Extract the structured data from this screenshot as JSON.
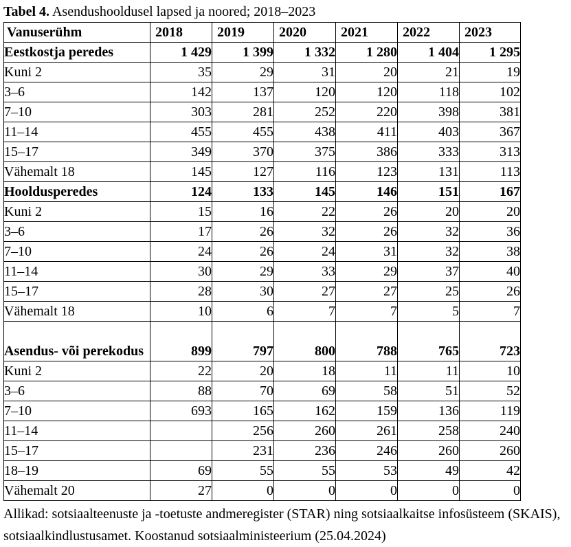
{
  "title": {
    "label_bold": "Tabel 4.",
    "label_rest": "Asendushooldusel lapsed ja noored; 2018–2023"
  },
  "colors": {
    "text": "#000000",
    "background": "#ffffff",
    "border": "#000000"
  },
  "table": {
    "header": [
      "Vanuserühm",
      "2018",
      "2019",
      "2020",
      "2021",
      "2022",
      "2023"
    ],
    "rows": [
      {
        "label": "Eestkostja peredes",
        "bold": true,
        "values": [
          "1 429",
          "1 399",
          "1 332",
          "1 280",
          "1 404",
          "1 295"
        ]
      },
      {
        "label": "Kuni 2",
        "bold": false,
        "values": [
          "35",
          "29",
          "31",
          "20",
          "21",
          "19"
        ]
      },
      {
        "label": "3–6",
        "bold": false,
        "values": [
          "142",
          "137",
          "120",
          "120",
          "118",
          "102"
        ]
      },
      {
        "label": "7–10",
        "bold": false,
        "values": [
          "303",
          "281",
          "252",
          "220",
          "398",
          "381"
        ]
      },
      {
        "label": "11–14",
        "bold": false,
        "values": [
          "455",
          "455",
          "438",
          "411",
          "403",
          "367"
        ]
      },
      {
        "label": "15–17",
        "bold": false,
        "values": [
          "349",
          "370",
          "375",
          "386",
          "333",
          "313"
        ]
      },
      {
        "label": "Vähemalt 18",
        "bold": false,
        "values": [
          "145",
          "127",
          "116",
          "123",
          "131",
          "113"
        ]
      },
      {
        "label": "Hooldusperedes",
        "bold": true,
        "values": [
          "124",
          "133",
          "145",
          "146",
          "151",
          "167"
        ]
      },
      {
        "label": "Kuni 2",
        "bold": false,
        "values": [
          "15",
          "16",
          "22",
          "26",
          "20",
          "20"
        ]
      },
      {
        "label": "3–6",
        "bold": false,
        "values": [
          "17",
          "26",
          "32",
          "26",
          "32",
          "36"
        ]
      },
      {
        "label": "7–10",
        "bold": false,
        "values": [
          "24",
          "26",
          "24",
          "31",
          "32",
          "38"
        ]
      },
      {
        "label": "11–14",
        "bold": false,
        "values": [
          "30",
          "29",
          "33",
          "29",
          "37",
          "40"
        ]
      },
      {
        "label": "15–17",
        "bold": false,
        "values": [
          "28",
          "30",
          "27",
          "27",
          "25",
          "26"
        ]
      },
      {
        "label": "Vähemalt 18",
        "bold": false,
        "values": [
          "10",
          "6",
          "7",
          "7",
          "5",
          "7"
        ]
      },
      {
        "label": "Asendus- või perekodus",
        "bold": true,
        "tall": true,
        "values": [
          "899",
          "797",
          "800",
          "788",
          "765",
          "723"
        ]
      },
      {
        "label": "Kuni 2",
        "bold": false,
        "values": [
          "22",
          "20",
          "18",
          "11",
          "11",
          "10"
        ]
      },
      {
        "label": "3–6",
        "bold": false,
        "values": [
          "88",
          "70",
          "69",
          "58",
          "51",
          "52"
        ]
      },
      {
        "label": "7–10",
        "bold": false,
        "values": [
          "693",
          "165",
          "162",
          "159",
          "136",
          "119"
        ]
      },
      {
        "label": "11–14",
        "bold": false,
        "values": [
          "",
          "256",
          "260",
          "261",
          "258",
          "240"
        ]
      },
      {
        "label": "15–17",
        "bold": false,
        "values": [
          "",
          "231",
          "236",
          "246",
          "260",
          "260"
        ]
      },
      {
        "label": "18–19",
        "bold": false,
        "values": [
          "69",
          "55",
          "55",
          "53",
          "49",
          "42"
        ]
      },
      {
        "label": "Vähemalt 20",
        "bold": false,
        "values": [
          "27",
          "0",
          "0",
          "0",
          "0",
          "0"
        ]
      }
    ]
  },
  "footer": {
    "source_text": "Allikad: sotsiaalteenuste ja -toetuste andmeregister (STAR) ning sotsiaalkaitse infosüsteem (SKAIS), sotsiaalkindlustusamet. Koostanud sotsiaalministeerium (25.04.2024)"
  }
}
